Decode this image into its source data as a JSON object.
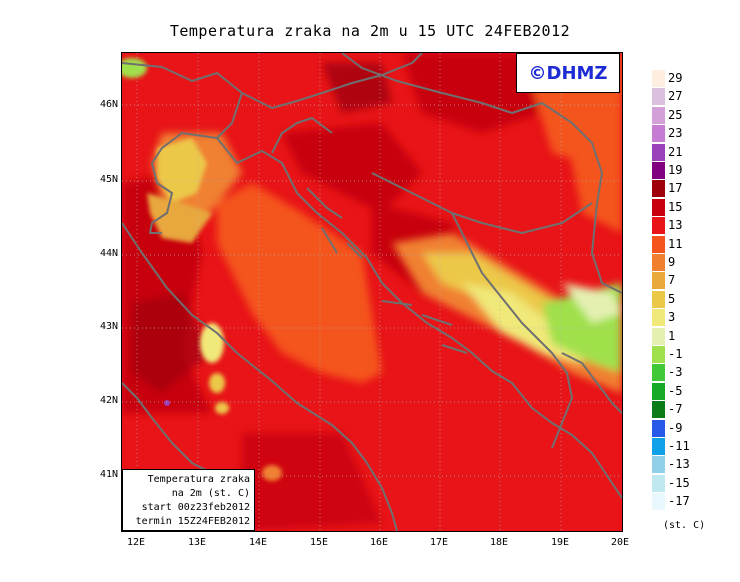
{
  "title": "Temperatura zraka na 2m u 15 UTC 24FEB2012",
  "watermark": "©DHMZ",
  "info_box": {
    "line1": "Temperatura zraka",
    "line2": "na 2m (st. C)",
    "line3": "start 00z23feb2012",
    "line4": "termin 15Z24FEB2012"
  },
  "lat_ticks": [
    "46N",
    "45N",
    "44N",
    "43N",
    "42N",
    "41N"
  ],
  "lon_ticks": [
    "12E",
    "13E",
    "14E",
    "15E",
    "16E",
    "17E",
    "18E",
    "19E",
    "20E"
  ],
  "legend": {
    "units": "(st. C)",
    "labels": [
      "29",
      "27",
      "25",
      "23",
      "21",
      "19",
      "17",
      "15",
      "13",
      "11",
      "9",
      "7",
      "5",
      "3",
      "1",
      "-1",
      "-3",
      "-5",
      "-7",
      "-9",
      "-11",
      "-13",
      "-15",
      "-17"
    ],
    "colors": [
      "#fdeee0",
      "#dcc0e0",
      "#d4a0d8",
      "#c67cd2",
      "#9a40b8",
      "#800080",
      "#a0000a",
      "#c8000c",
      "#e81418",
      "#f4541c",
      "#f08030",
      "#e8a83c",
      "#ecc848",
      "#f0e878",
      "#e4f0b0",
      "#a0e04c",
      "#40c838",
      "#18a828",
      "#0c7c18",
      "#2858e8",
      "#10a0e8",
      "#90d0e8",
      "#c0e8f0",
      "#e8f8fc"
    ]
  }
}
